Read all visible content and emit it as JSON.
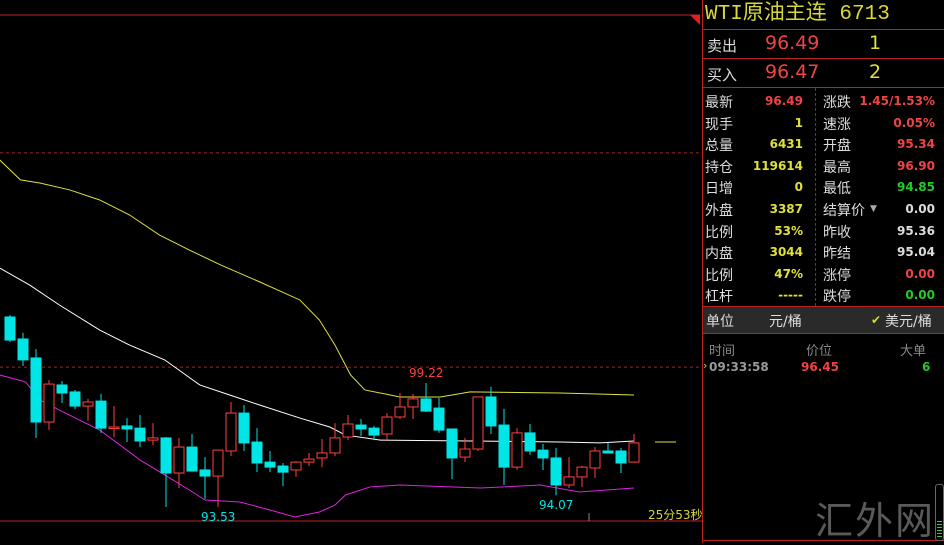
{
  "header": {
    "title": "WTI原油主连  6713"
  },
  "quote": {
    "ask": {
      "label": "卖出",
      "price": "96.49",
      "qty": "1"
    },
    "bid": {
      "label": "买入",
      "price": "96.47",
      "qty": "2"
    }
  },
  "stats": [
    {
      "l1": "最新",
      "v1": "96.49",
      "c1": "#f04444",
      "l2": "涨跌",
      "v2": "1.45/1.53%",
      "c2": "#f04444"
    },
    {
      "l1": "现手",
      "v1": "1",
      "c1": "#e0e03a",
      "l2": "速涨",
      "v2": "0.05%",
      "c2": "#f04444"
    },
    {
      "l1": "总量",
      "v1": "6431",
      "c1": "#e0e03a",
      "l2": "开盘",
      "v2": "95.34",
      "c2": "#f04444"
    },
    {
      "l1": "持仓",
      "v1": "119614",
      "c1": "#e0e03a",
      "l2": "最高",
      "v2": "96.90",
      "c2": "#f04444"
    },
    {
      "l1": "日增",
      "v1": "0",
      "c1": "#e0e03a",
      "l2": "最低",
      "v2": "94.85",
      "c2": "#22cc22"
    },
    {
      "l1": "外盘",
      "v1": "3387",
      "c1": "#e0e03a",
      "l2": "结算价",
      "v2": "0.00",
      "c2": "#dddddd",
      "dropdown": true
    },
    {
      "l1": "比例",
      "v1": "53%",
      "c1": "#e0e03a",
      "l2": "昨收",
      "v2": "95.36",
      "c2": "#dddddd"
    },
    {
      "l1": "内盘",
      "v1": "3044",
      "c1": "#e0e03a",
      "l2": "昨结",
      "v2": "95.04",
      "c2": "#dddddd"
    },
    {
      "l1": "比例",
      "v1": "47%",
      "c1": "#e0e03a",
      "l2": "涨停",
      "v2": "0.00",
      "c2": "#f04444"
    },
    {
      "l1": "杠杆",
      "v1": "-----",
      "c1": "#e0e03a",
      "l2": "跌停",
      "v2": "0.00",
      "c2": "#22cc22"
    }
  ],
  "unit": {
    "label": "单位",
    "option1": "元/桶",
    "option2": "美元/桶",
    "selected": "美元/桶"
  },
  "ticks": {
    "headers": [
      "时间",
      "价位",
      "大单"
    ],
    "rows": [
      {
        "time": "09:33:58",
        "price": "96.45",
        "size": "6"
      }
    ]
  },
  "countdown": "25分53秒",
  "watermark": "汇外网",
  "colors": {
    "up": "#ff4040",
    "down": "#00e5e5",
    "ma1": "#e0e040",
    "ma2": "#ffffff",
    "ma3": "#e020e0",
    "grid": "#b22222"
  },
  "chart_data": {
    "type": "candlestick",
    "fields": [
      "open",
      "high",
      "low",
      "close"
    ],
    "candles": [
      [
        102.25,
        102.34,
        101.1,
        101.19
      ],
      [
        101.24,
        101.52,
        100.0,
        100.28
      ],
      [
        100.37,
        100.78,
        96.7,
        97.43
      ],
      [
        97.43,
        99.36,
        97.06,
        99.17
      ],
      [
        99.13,
        99.31,
        98.3,
        98.76
      ],
      [
        98.81,
        98.9,
        98.03,
        98.16
      ],
      [
        98.16,
        98.49,
        97.48,
        98.35
      ],
      [
        98.39,
        98.72,
        96.93,
        97.15
      ],
      [
        97.15,
        98.16,
        96.74,
        97.2
      ],
      [
        97.25,
        97.61,
        96.51,
        97.11
      ],
      [
        97.15,
        97.75,
        96.28,
        96.56
      ],
      [
        96.6,
        97.38,
        96.37,
        96.7
      ],
      [
        96.7,
        96.74,
        93.53,
        95.09
      ],
      [
        95.09,
        96.7,
        94.4,
        96.28
      ],
      [
        96.28,
        96.88,
        95.18,
        95.18
      ],
      [
        95.23,
        95.82,
        93.9,
        94.95
      ],
      [
        94.95,
        96.14,
        93.53,
        96.14
      ],
      [
        96.1,
        98.35,
        95.87,
        97.84
      ],
      [
        97.84,
        98.21,
        96.1,
        96.47
      ],
      [
        96.51,
        97.15,
        95.13,
        95.55
      ],
      [
        95.59,
        96.1,
        95.13,
        95.36
      ],
      [
        95.41,
        95.55,
        94.49,
        95.13
      ],
      [
        95.23,
        95.64,
        94.91,
        95.59
      ],
      [
        95.59,
        96.01,
        95.41,
        95.73
      ],
      [
        95.78,
        96.65,
        95.36,
        96.01
      ],
      [
        96.01,
        97.38,
        95.87,
        96.7
      ],
      [
        96.74,
        97.75,
        96.6,
        97.34
      ],
      [
        97.29,
        97.57,
        96.79,
        97.11
      ],
      [
        97.15,
        97.25,
        96.65,
        96.83
      ],
      [
        96.88,
        97.84,
        96.6,
        97.66
      ],
      [
        97.66,
        98.76,
        97.57,
        98.12
      ],
      [
        98.12,
        98.72,
        97.57,
        98.49
      ],
      [
        98.49,
        99.22,
        97.89,
        97.93
      ],
      [
        98.07,
        98.53,
        96.93,
        97.06
      ],
      [
        97.11,
        97.11,
        94.81,
        95.78
      ],
      [
        95.82,
        96.7,
        95.59,
        96.19
      ],
      [
        96.19,
        98.58,
        96.1,
        98.58
      ],
      [
        98.58,
        99.04,
        96.88,
        97.25
      ],
      [
        97.29,
        98.03,
        94.54,
        95.36
      ],
      [
        95.36,
        97.15,
        95.23,
        96.93
      ],
      [
        96.93,
        97.34,
        95.92,
        96.1
      ],
      [
        96.14,
        96.42,
        95.23,
        95.78
      ],
      [
        95.78,
        96.24,
        94.07,
        94.54
      ],
      [
        94.54,
        95.82,
        94.4,
        94.91
      ],
      [
        94.91,
        95.41,
        94.45,
        95.36
      ],
      [
        95.32,
        96.28,
        94.86,
        96.1
      ],
      [
        96.1,
        96.47,
        96.01,
        96.01
      ],
      [
        96.1,
        96.24,
        95.09,
        95.55
      ],
      [
        95.59,
        96.88,
        95.59,
        96.47
      ]
    ],
    "lines": [
      {
        "color": "#e0e040",
        "points": [
          [
            -0.8,
            109.46
          ],
          [
            0.8,
            108.54
          ],
          [
            2.3,
            108.4
          ],
          [
            4.6,
            108.08
          ],
          [
            6.9,
            107.62
          ],
          [
            9.2,
            106.93
          ],
          [
            11.5,
            106.01
          ],
          [
            13.8,
            105.32
          ],
          [
            16.2,
            104.64
          ],
          [
            19.2,
            103.86
          ],
          [
            22.3,
            103.03
          ],
          [
            23.8,
            102.11
          ],
          [
            25,
            100.96
          ],
          [
            26.2,
            99.59
          ],
          [
            27.3,
            98.9
          ],
          [
            30,
            98.58
          ],
          [
            33.1,
            98.58
          ],
          [
            35.4,
            98.81
          ],
          [
            42.3,
            98.76
          ],
          [
            48,
            98.67
          ]
        ]
      },
      {
        "color": "#ffffff",
        "points": [
          [
            -0.8,
            104.5
          ],
          [
            1.5,
            103.72
          ],
          [
            3.8,
            102.8
          ],
          [
            6.9,
            101.65
          ],
          [
            9.2,
            100.96
          ],
          [
            11.9,
            100.28
          ],
          [
            14.6,
            99.13
          ],
          [
            16.9,
            98.67
          ],
          [
            19.2,
            98.21
          ],
          [
            22.3,
            97.61
          ],
          [
            24.6,
            97.2
          ],
          [
            25.8,
            96.83
          ],
          [
            28.5,
            96.6
          ],
          [
            35.4,
            96.56
          ],
          [
            42.3,
            96.51
          ],
          [
            45.4,
            96.47
          ],
          [
            48,
            96.56
          ]
        ]
      },
      {
        "color": "#e020e0",
        "points": [
          [
            -0.8,
            99.59
          ],
          [
            1.2,
            99.27
          ],
          [
            2.3,
            98.44
          ],
          [
            3.8,
            97.98
          ],
          [
            6.9,
            97.06
          ],
          [
            10,
            95.69
          ],
          [
            11.9,
            95.0
          ],
          [
            13.8,
            94.31
          ],
          [
            15,
            93.85
          ],
          [
            17.7,
            93.76
          ],
          [
            20,
            93.39
          ],
          [
            21.9,
            93.07
          ],
          [
            23.8,
            93.3
          ],
          [
            25,
            93.62
          ],
          [
            25.8,
            94.08
          ],
          [
            27.7,
            94.45
          ],
          [
            30,
            94.54
          ],
          [
            36.2,
            94.4
          ],
          [
            40.8,
            94.54
          ],
          [
            43.8,
            94.22
          ],
          [
            48,
            94.4
          ]
        ]
      }
    ],
    "reference_lines": [
      109.78,
      99.95
    ],
    "current_price_marker": 96.51,
    "annotations": [
      {
        "label": "99.22",
        "index": 32,
        "price": 99.22,
        "color": "#ff4040"
      },
      {
        "label": "93.53",
        "index": 16,
        "price": 93.53,
        "color": "#00e5e5"
      },
      {
        "label": "94.07",
        "index": 42,
        "price": 94.07,
        "color": "#00e5e5"
      }
    ]
  }
}
